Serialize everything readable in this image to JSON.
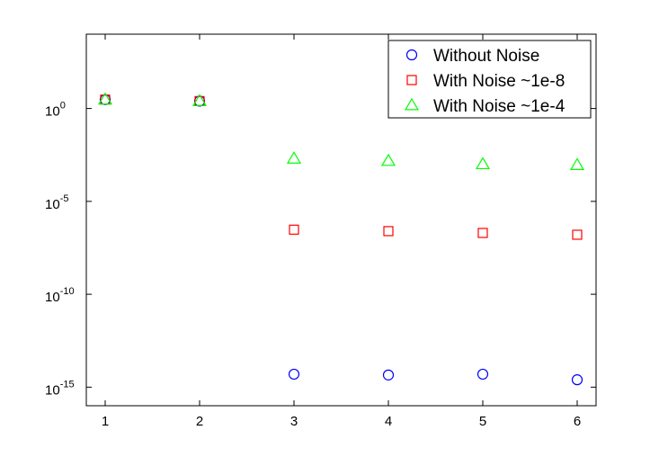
{
  "chart_data": {
    "type": "scatter",
    "title": "",
    "xlabel": "",
    "ylabel": "",
    "x": [
      1,
      2,
      3,
      4,
      5,
      6
    ],
    "xlim": [
      0.8,
      6.2
    ],
    "ylim": [
      1e-16,
      10000.0
    ],
    "yscale": "log",
    "x_ticks": [
      "1",
      "2",
      "3",
      "4",
      "5",
      "6"
    ],
    "y_ticks": [
      {
        "value": 1.0,
        "base": "10",
        "exp": "0"
      },
      {
        "value": 1e-05,
        "base": "10",
        "exp": "-5"
      },
      {
        "value": 1e-10,
        "base": "10",
        "exp": "-10"
      },
      {
        "value": 1e-15,
        "base": "10",
        "exp": "-15"
      }
    ],
    "grid": false,
    "legend_position": "top-right",
    "series": [
      {
        "name": "Without Noise",
        "marker": "circle",
        "color": "#0000ff",
        "values": [
          3.0,
          2.5,
          5e-15,
          4.5e-15,
          5e-15,
          2.5e-15
        ]
      },
      {
        "name": "With Noise ~1e-8",
        "marker": "square",
        "color": "#ff0000",
        "values": [
          3.0,
          2.5,
          3e-07,
          2.5e-07,
          2e-07,
          1.6e-07
        ]
      },
      {
        "name": "With Noise ~1e-4",
        "marker": "triangle",
        "color": "#00ff00",
        "values": [
          3.0,
          2.5,
          0.002,
          0.0015,
          0.001,
          0.0009
        ]
      }
    ]
  }
}
